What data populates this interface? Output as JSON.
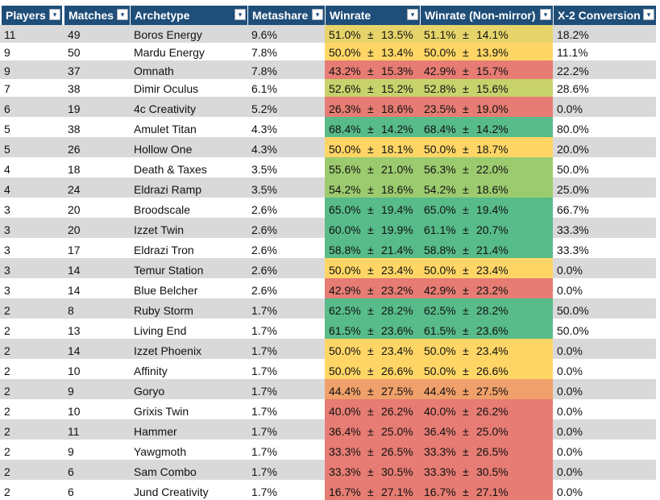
{
  "columns": [
    {
      "label": "Players"
    },
    {
      "label": "Matches"
    },
    {
      "label": "Archetype"
    },
    {
      "label": "Metashare"
    },
    {
      "label": "Winrate"
    },
    {
      "label": "Winrate (Non-mirror)"
    },
    {
      "label": "X-2 Conversion"
    }
  ],
  "pm": "±",
  "colors": {
    "header": "#1f4e79",
    "band_grey": "#d9d9d9",
    "green": "#57bb8a",
    "green_light": "#9ccb6f",
    "yellow_green": "#c8d26c",
    "yellow_olive": "#e6d46a",
    "yellow": "#ffd666",
    "orange": "#f0a06a",
    "red": "#e67c73"
  },
  "rows": [
    {
      "players": "11",
      "matches": "49",
      "archetype": "Boros Energy",
      "metashare": "9.6%",
      "wr": "51.0%",
      "wr_err": "13.5%",
      "nm": "51.1%",
      "nm_err": "14.1%",
      "x2": "18.2%",
      "color": "yellow_olive"
    },
    {
      "players": "9",
      "matches": "50",
      "archetype": "Mardu Energy",
      "metashare": "7.8%",
      "wr": "50.0%",
      "wr_err": "13.4%",
      "nm": "50.0%",
      "nm_err": "13.9%",
      "x2": "11.1%",
      "color": "yellow"
    },
    {
      "players": "9",
      "matches": "37",
      "archetype": "Omnath",
      "metashare": "7.8%",
      "wr": "43.2%",
      "wr_err": "15.3%",
      "nm": "42.9%",
      "nm_err": "15.7%",
      "x2": "22.2%",
      "color": "red"
    },
    {
      "players": "7",
      "matches": "38",
      "archetype": "Dimir Oculus",
      "metashare": "6.1%",
      "wr": "52.6%",
      "wr_err": "15.2%",
      "nm": "52.8%",
      "nm_err": "15.6%",
      "x2": "28.6%",
      "color": "yellow_green"
    },
    {
      "players": "6",
      "matches": "19",
      "archetype": "4c Creativity",
      "metashare": "5.2%",
      "wr": "26.3%",
      "wr_err": "18.6%",
      "nm": "23.5%",
      "nm_err": "19.0%",
      "x2": "0.0%",
      "color": "red"
    },
    {
      "players": "5",
      "matches": "38",
      "archetype": "Amulet Titan",
      "metashare": "4.3%",
      "wr": "68.4%",
      "wr_err": "14.2%",
      "nm": "68.4%",
      "nm_err": "14.2%",
      "x2": "80.0%",
      "color": "green"
    },
    {
      "players": "5",
      "matches": "26",
      "archetype": "Hollow One",
      "metashare": "4.3%",
      "wr": "50.0%",
      "wr_err": "18.1%",
      "nm": "50.0%",
      "nm_err": "18.7%",
      "x2": "20.0%",
      "color": "yellow"
    },
    {
      "players": "4",
      "matches": "18",
      "archetype": "Death & Taxes",
      "metashare": "3.5%",
      "wr": "55.6%",
      "wr_err": "21.0%",
      "nm": "56.3%",
      "nm_err": "22.0%",
      "x2": "50.0%",
      "color": "green_light"
    },
    {
      "players": "4",
      "matches": "24",
      "archetype": "Eldrazi Ramp",
      "metashare": "3.5%",
      "wr": "54.2%",
      "wr_err": "18.6%",
      "nm": "54.2%",
      "nm_err": "18.6%",
      "x2": "25.0%",
      "color": "green_light"
    },
    {
      "players": "3",
      "matches": "20",
      "archetype": "Broodscale",
      "metashare": "2.6%",
      "wr": "65.0%",
      "wr_err": "19.4%",
      "nm": "65.0%",
      "nm_err": "19.4%",
      "x2": "66.7%",
      "color": "green"
    },
    {
      "players": "3",
      "matches": "20",
      "archetype": "Izzet Twin",
      "metashare": "2.6%",
      "wr": "60.0%",
      "wr_err": "19.9%",
      "nm": "61.1%",
      "nm_err": "20.7%",
      "x2": "33.3%",
      "color": "green"
    },
    {
      "players": "3",
      "matches": "17",
      "archetype": "Eldrazi Tron",
      "metashare": "2.6%",
      "wr": "58.8%",
      "wr_err": "21.4%",
      "nm": "58.8%",
      "nm_err": "21.4%",
      "x2": "33.3%",
      "color": "green"
    },
    {
      "players": "3",
      "matches": "14",
      "archetype": "Temur Station",
      "metashare": "2.6%",
      "wr": "50.0%",
      "wr_err": "23.4%",
      "nm": "50.0%",
      "nm_err": "23.4%",
      "x2": "0.0%",
      "color": "yellow"
    },
    {
      "players": "3",
      "matches": "14",
      "archetype": "Blue Belcher",
      "metashare": "2.6%",
      "wr": "42.9%",
      "wr_err": "23.2%",
      "nm": "42.9%",
      "nm_err": "23.2%",
      "x2": "0.0%",
      "color": "red"
    },
    {
      "players": "2",
      "matches": "8",
      "archetype": "Ruby Storm",
      "metashare": "1.7%",
      "wr": "62.5%",
      "wr_err": "28.2%",
      "nm": "62.5%",
      "nm_err": "28.2%",
      "x2": "50.0%",
      "color": "green"
    },
    {
      "players": "2",
      "matches": "13",
      "archetype": "Living End",
      "metashare": "1.7%",
      "wr": "61.5%",
      "wr_err": "23.6%",
      "nm": "61.5%",
      "nm_err": "23.6%",
      "x2": "50.0%",
      "color": "green"
    },
    {
      "players": "2",
      "matches": "14",
      "archetype": "Izzet Phoenix",
      "metashare": "1.7%",
      "wr": "50.0%",
      "wr_err": "23.4%",
      "nm": "50.0%",
      "nm_err": "23.4%",
      "x2": "0.0%",
      "color": "yellow"
    },
    {
      "players": "2",
      "matches": "10",
      "archetype": "Affinity",
      "metashare": "1.7%",
      "wr": "50.0%",
      "wr_err": "26.6%",
      "nm": "50.0%",
      "nm_err": "26.6%",
      "x2": "0.0%",
      "color": "yellow"
    },
    {
      "players": "2",
      "matches": "9",
      "archetype": "Goryo",
      "metashare": "1.7%",
      "wr": "44.4%",
      "wr_err": "27.5%",
      "nm": "44.4%",
      "nm_err": "27.5%",
      "x2": "0.0%",
      "color": "orange"
    },
    {
      "players": "2",
      "matches": "10",
      "archetype": "Grixis Twin",
      "metashare": "1.7%",
      "wr": "40.0%",
      "wr_err": "26.2%",
      "nm": "40.0%",
      "nm_err": "26.2%",
      "x2": "0.0%",
      "color": "red"
    },
    {
      "players": "2",
      "matches": "11",
      "archetype": "Hammer",
      "metashare": "1.7%",
      "wr": "36.4%",
      "wr_err": "25.0%",
      "nm": "36.4%",
      "nm_err": "25.0%",
      "x2": "0.0%",
      "color": "red"
    },
    {
      "players": "2",
      "matches": "9",
      "archetype": "Yawgmoth",
      "metashare": "1.7%",
      "wr": "33.3%",
      "wr_err": "26.5%",
      "nm": "33.3%",
      "nm_err": "26.5%",
      "x2": "0.0%",
      "color": "red"
    },
    {
      "players": "2",
      "matches": "6",
      "archetype": "Sam Combo",
      "metashare": "1.7%",
      "wr": "33.3%",
      "wr_err": "30.5%",
      "nm": "33.3%",
      "nm_err": "30.5%",
      "x2": "0.0%",
      "color": "red"
    },
    {
      "players": "2",
      "matches": "6",
      "archetype": "Jund Creativity",
      "metashare": "1.7%",
      "wr": "16.7%",
      "wr_err": "27.1%",
      "nm": "16.7%",
      "nm_err": "27.1%",
      "x2": "0.0%",
      "color": "red"
    }
  ]
}
